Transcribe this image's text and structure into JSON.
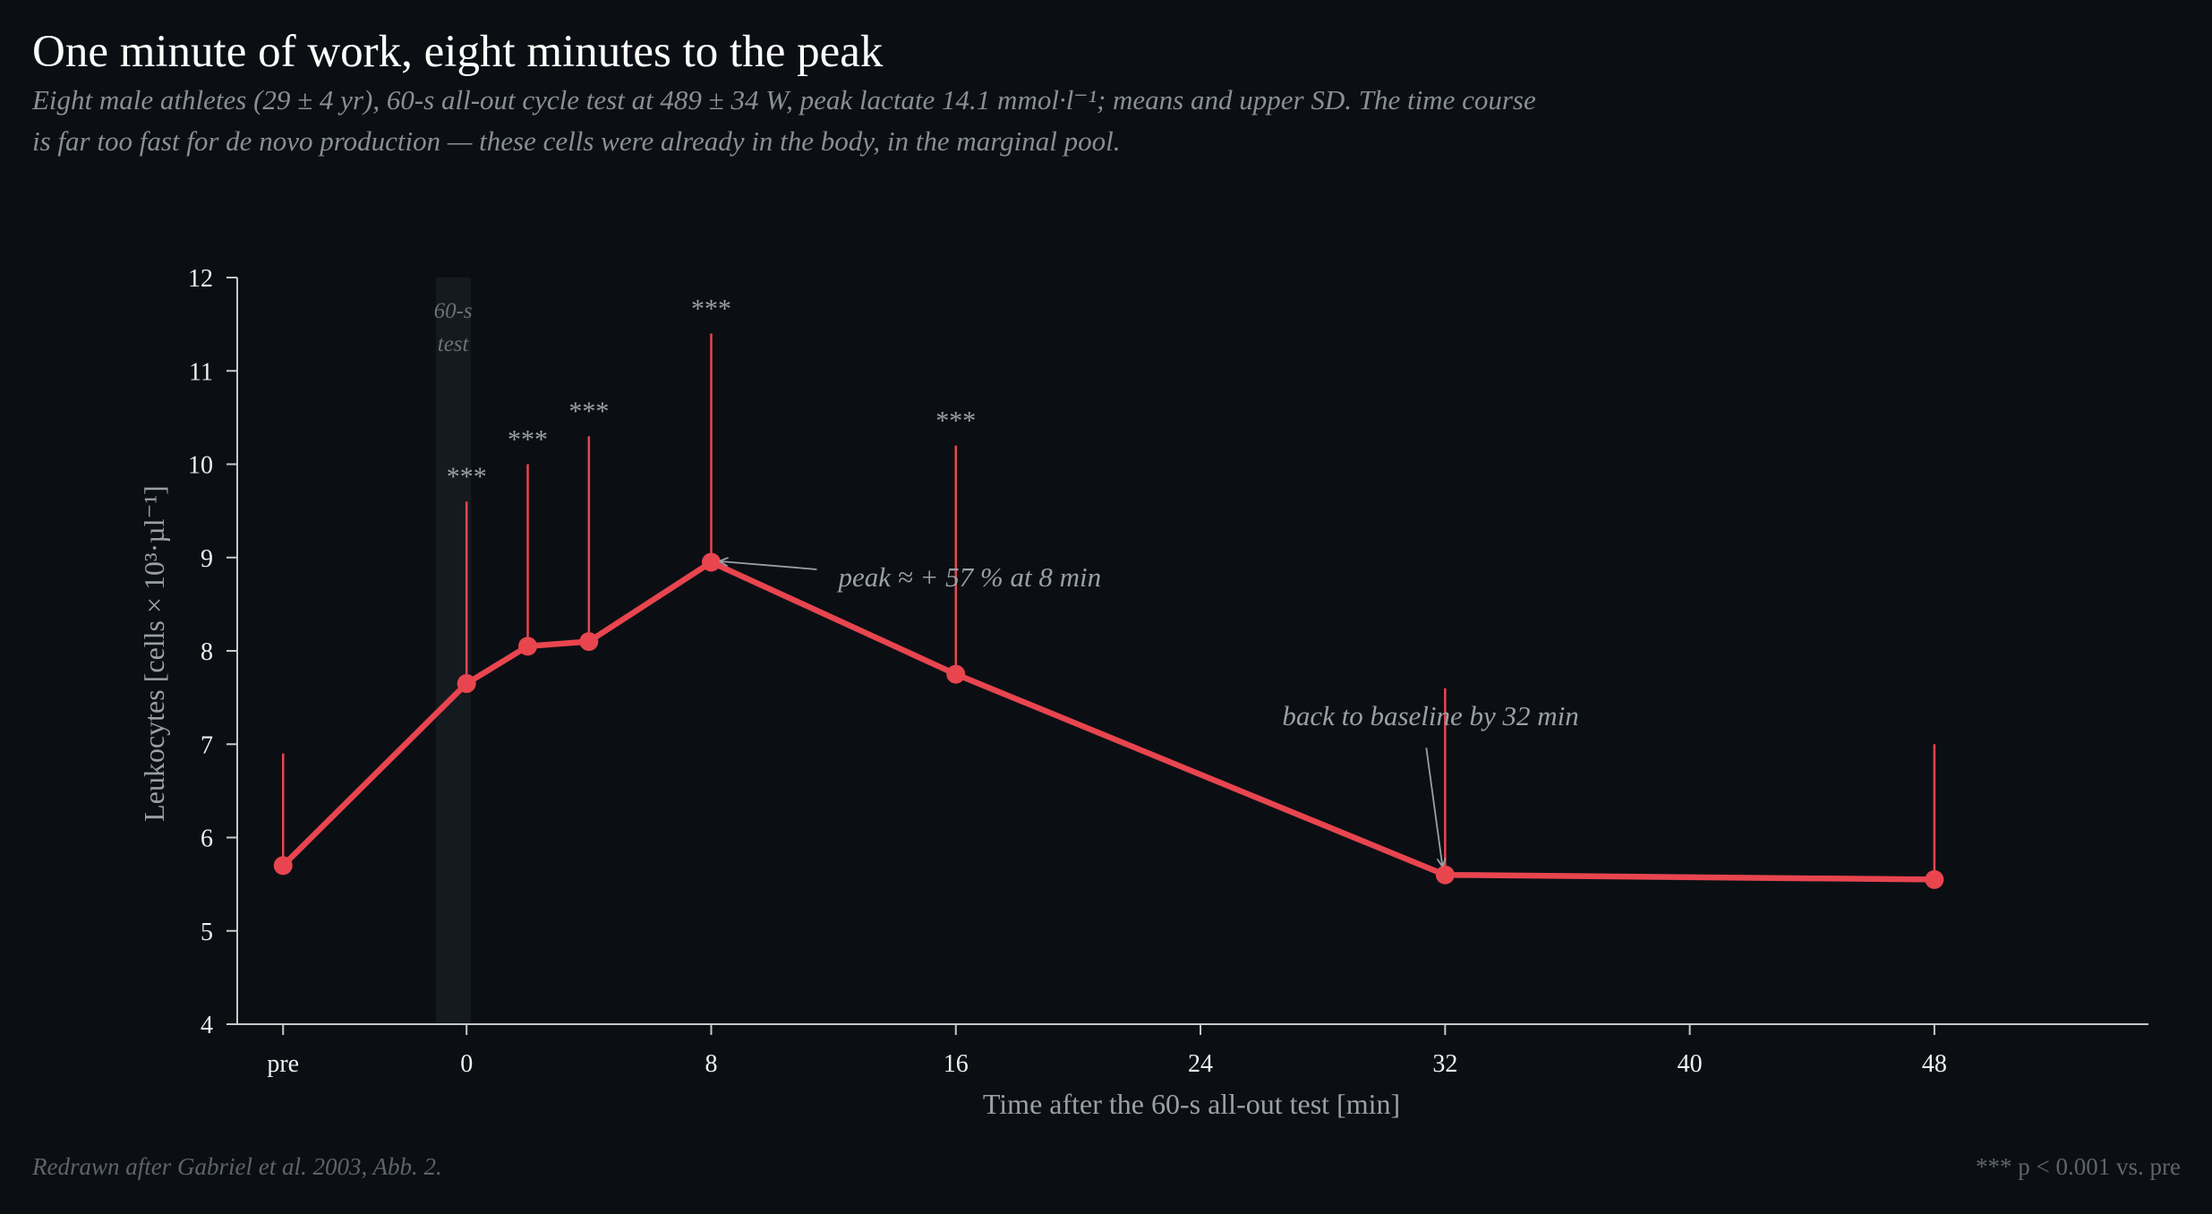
{
  "title": "One minute of work, eight minutes to the peak",
  "subtitle_lines": [
    "Eight male athletes (29 ± 4 yr), 60-s all-out cycle test at 489 ± 34 W, peak lactate 14.1 mmol·l⁻¹; means and upper SD. The time course",
    "is far too fast for de novo production — these cells were already in the body, in the marginal pool."
  ],
  "footer": {
    "source": "Redrawn after Gabriel et al. 2003, Abb. 2.",
    "significance_note": "*** p < 0.001 vs. pre"
  },
  "colors": {
    "background": "#0b0f14",
    "series": "#e8454f",
    "axis": "#c8c8c8",
    "muted_text": "#9aa0a6",
    "band": "#171c21"
  },
  "chart_data": {
    "type": "line",
    "xlabel": "Time after the 60-s all-out test  [min]",
    "ylabel": "Leukocytes  [cells × 10³·µl⁻¹]",
    "ylim": [
      4,
      12
    ],
    "yticks": [
      4,
      5,
      6,
      7,
      8,
      9,
      10,
      11,
      12
    ],
    "xlim": [
      -7.5,
      55
    ],
    "xticks": [
      {
        "x": -6,
        "label": "pre"
      },
      {
        "x": 0,
        "label": "0"
      },
      {
        "x": 8,
        "label": "8"
      },
      {
        "x": 16,
        "label": "16"
      },
      {
        "x": 24,
        "label": "24"
      },
      {
        "x": 32,
        "label": "32"
      },
      {
        "x": 40,
        "label": "40"
      },
      {
        "x": 48,
        "label": "48"
      }
    ],
    "grid": false,
    "legend": "none",
    "exercise_band": {
      "x_start": -1,
      "x_end": 0,
      "label_lines": [
        "60-s",
        "test"
      ]
    },
    "series": [
      {
        "x": [
          -6,
          0,
          2,
          4,
          8,
          16,
          32,
          48
        ],
        "y": [
          5.7,
          7.65,
          8.05,
          8.1,
          8.95,
          7.75,
          5.6,
          5.55
        ],
        "sd_upper": [
          6.9,
          9.6,
          10.0,
          10.3,
          11.4,
          10.2,
          7.6,
          7.0
        ],
        "significance": [
          "",
          "***",
          "***",
          "***",
          "***",
          "***",
          "",
          ""
        ]
      }
    ],
    "annotations": [
      {
        "text": "peak ≈ + 57 % at 8 min",
        "x": 8,
        "y": 8.95
      },
      {
        "text": "back to baseline by 32 min",
        "x": 32,
        "y": 5.6
      }
    ]
  }
}
